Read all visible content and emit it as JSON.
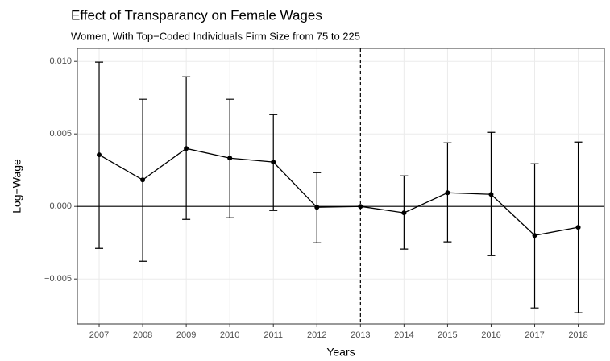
{
  "chart_data": {
    "type": "line",
    "title": "Effect of Transparancy on Female Wages",
    "subtitle": "Women, With Top−Coded Individuals Firm Size from 75 to 225",
    "xlabel": "Years",
    "ylabel": "Log−Wage",
    "x": [
      2007,
      2008,
      2009,
      2010,
      2011,
      2012,
      2013,
      2014,
      2015,
      2016,
      2017,
      2018
    ],
    "series": [
      {
        "color": "#000000",
        "values": [
          0.00356,
          0.00183,
          0.004,
          0.00333,
          0.00306,
          -6e-05,
          0,
          -0.00044,
          0.00094,
          0.00083,
          -0.002,
          -0.00144
        ],
        "lower": [
          -0.00289,
          -0.00378,
          -0.00089,
          -0.00078,
          -0.00028,
          -0.0025,
          0,
          -0.00294,
          -0.00244,
          -0.00339,
          -0.007,
          -0.00733
        ],
        "upper": [
          0.00995,
          0.00739,
          0.00894,
          0.00739,
          0.00633,
          0.00233,
          0,
          0.00211,
          0.00439,
          0.00511,
          0.00294,
          0.00444
        ]
      }
    ],
    "xlim": [
      2006.5,
      2018.6
    ],
    "ylim": [
      -0.0081,
      0.0109
    ],
    "xticks": [
      2007,
      2008,
      2009,
      2010,
      2011,
      2012,
      2013,
      2014,
      2015,
      2016,
      2017,
      2018
    ],
    "yticks": [
      {
        "value": -0.005,
        "label": "−0.005"
      },
      {
        "value": 0,
        "label": "0.000"
      },
      {
        "value": 0.005,
        "label": "0.005"
      },
      {
        "value": 0.01,
        "label": "0.010"
      }
    ],
    "vline": 2013,
    "hline": 0,
    "grid": true
  }
}
